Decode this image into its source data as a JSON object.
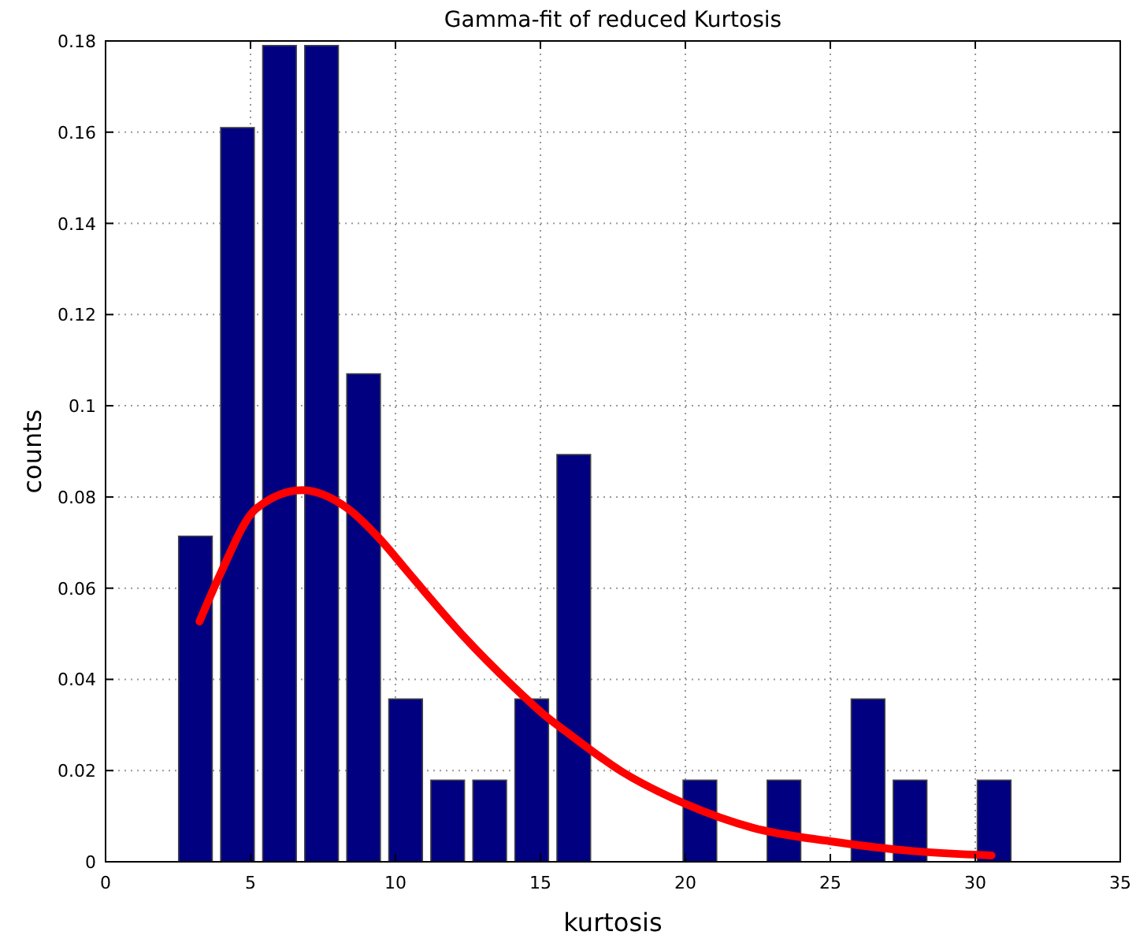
{
  "chart_data": {
    "type": "bar",
    "title": "Gamma-fit of reduced Kurtosis",
    "xlabel": "kurtosis",
    "ylabel": "counts",
    "xlim": [
      0,
      35
    ],
    "xticks": [
      0,
      5,
      10,
      15,
      20,
      25,
      30,
      35
    ],
    "ylim": [
      0,
      0.18
    ],
    "yticks": [
      0,
      0.02,
      0.04,
      0.06,
      0.08,
      {
        "value": 0.1,
        "label": "0.1"
      },
      0.12,
      0.14,
      0.16,
      0.18
    ],
    "grid": true,
    "series": [
      {
        "color": "#000080",
        "x": [
          3.1,
          4.55,
          6.0,
          7.45,
          8.9,
          10.35,
          11.8,
          13.25,
          14.7,
          16.15,
          17.6,
          19.05,
          20.5,
          21.95,
          23.4,
          24.85,
          26.3,
          27.75,
          29.2,
          30.65
        ],
        "values": [
          0.0714,
          0.161,
          0.179,
          0.179,
          0.107,
          0.0357,
          0.0179,
          0.0179,
          0.0357,
          0.0893,
          0,
          0,
          0.0179,
          0,
          0.0179,
          0,
          0.0357,
          0.0179,
          0,
          0.0179
        ]
      },
      {
        "type": "line",
        "color": "#ff0000",
        "x": [
          3.24,
          3.95,
          5.19,
          6.78,
          8.37,
          9.43,
          10.5,
          12.27,
          14.04,
          15.27,
          16.0,
          17.8,
          20,
          22.35,
          25,
          27.76,
          30.56
        ],
        "values": [
          0.0527,
          0.063,
          0.0774,
          0.0815,
          0.0774,
          0.071,
          0.063,
          0.05,
          0.0386,
          0.0315,
          0.028,
          0.0198,
          0.0127,
          0.0074,
          0.0045,
          0.0024,
          0.0014
        ]
      }
    ]
  }
}
